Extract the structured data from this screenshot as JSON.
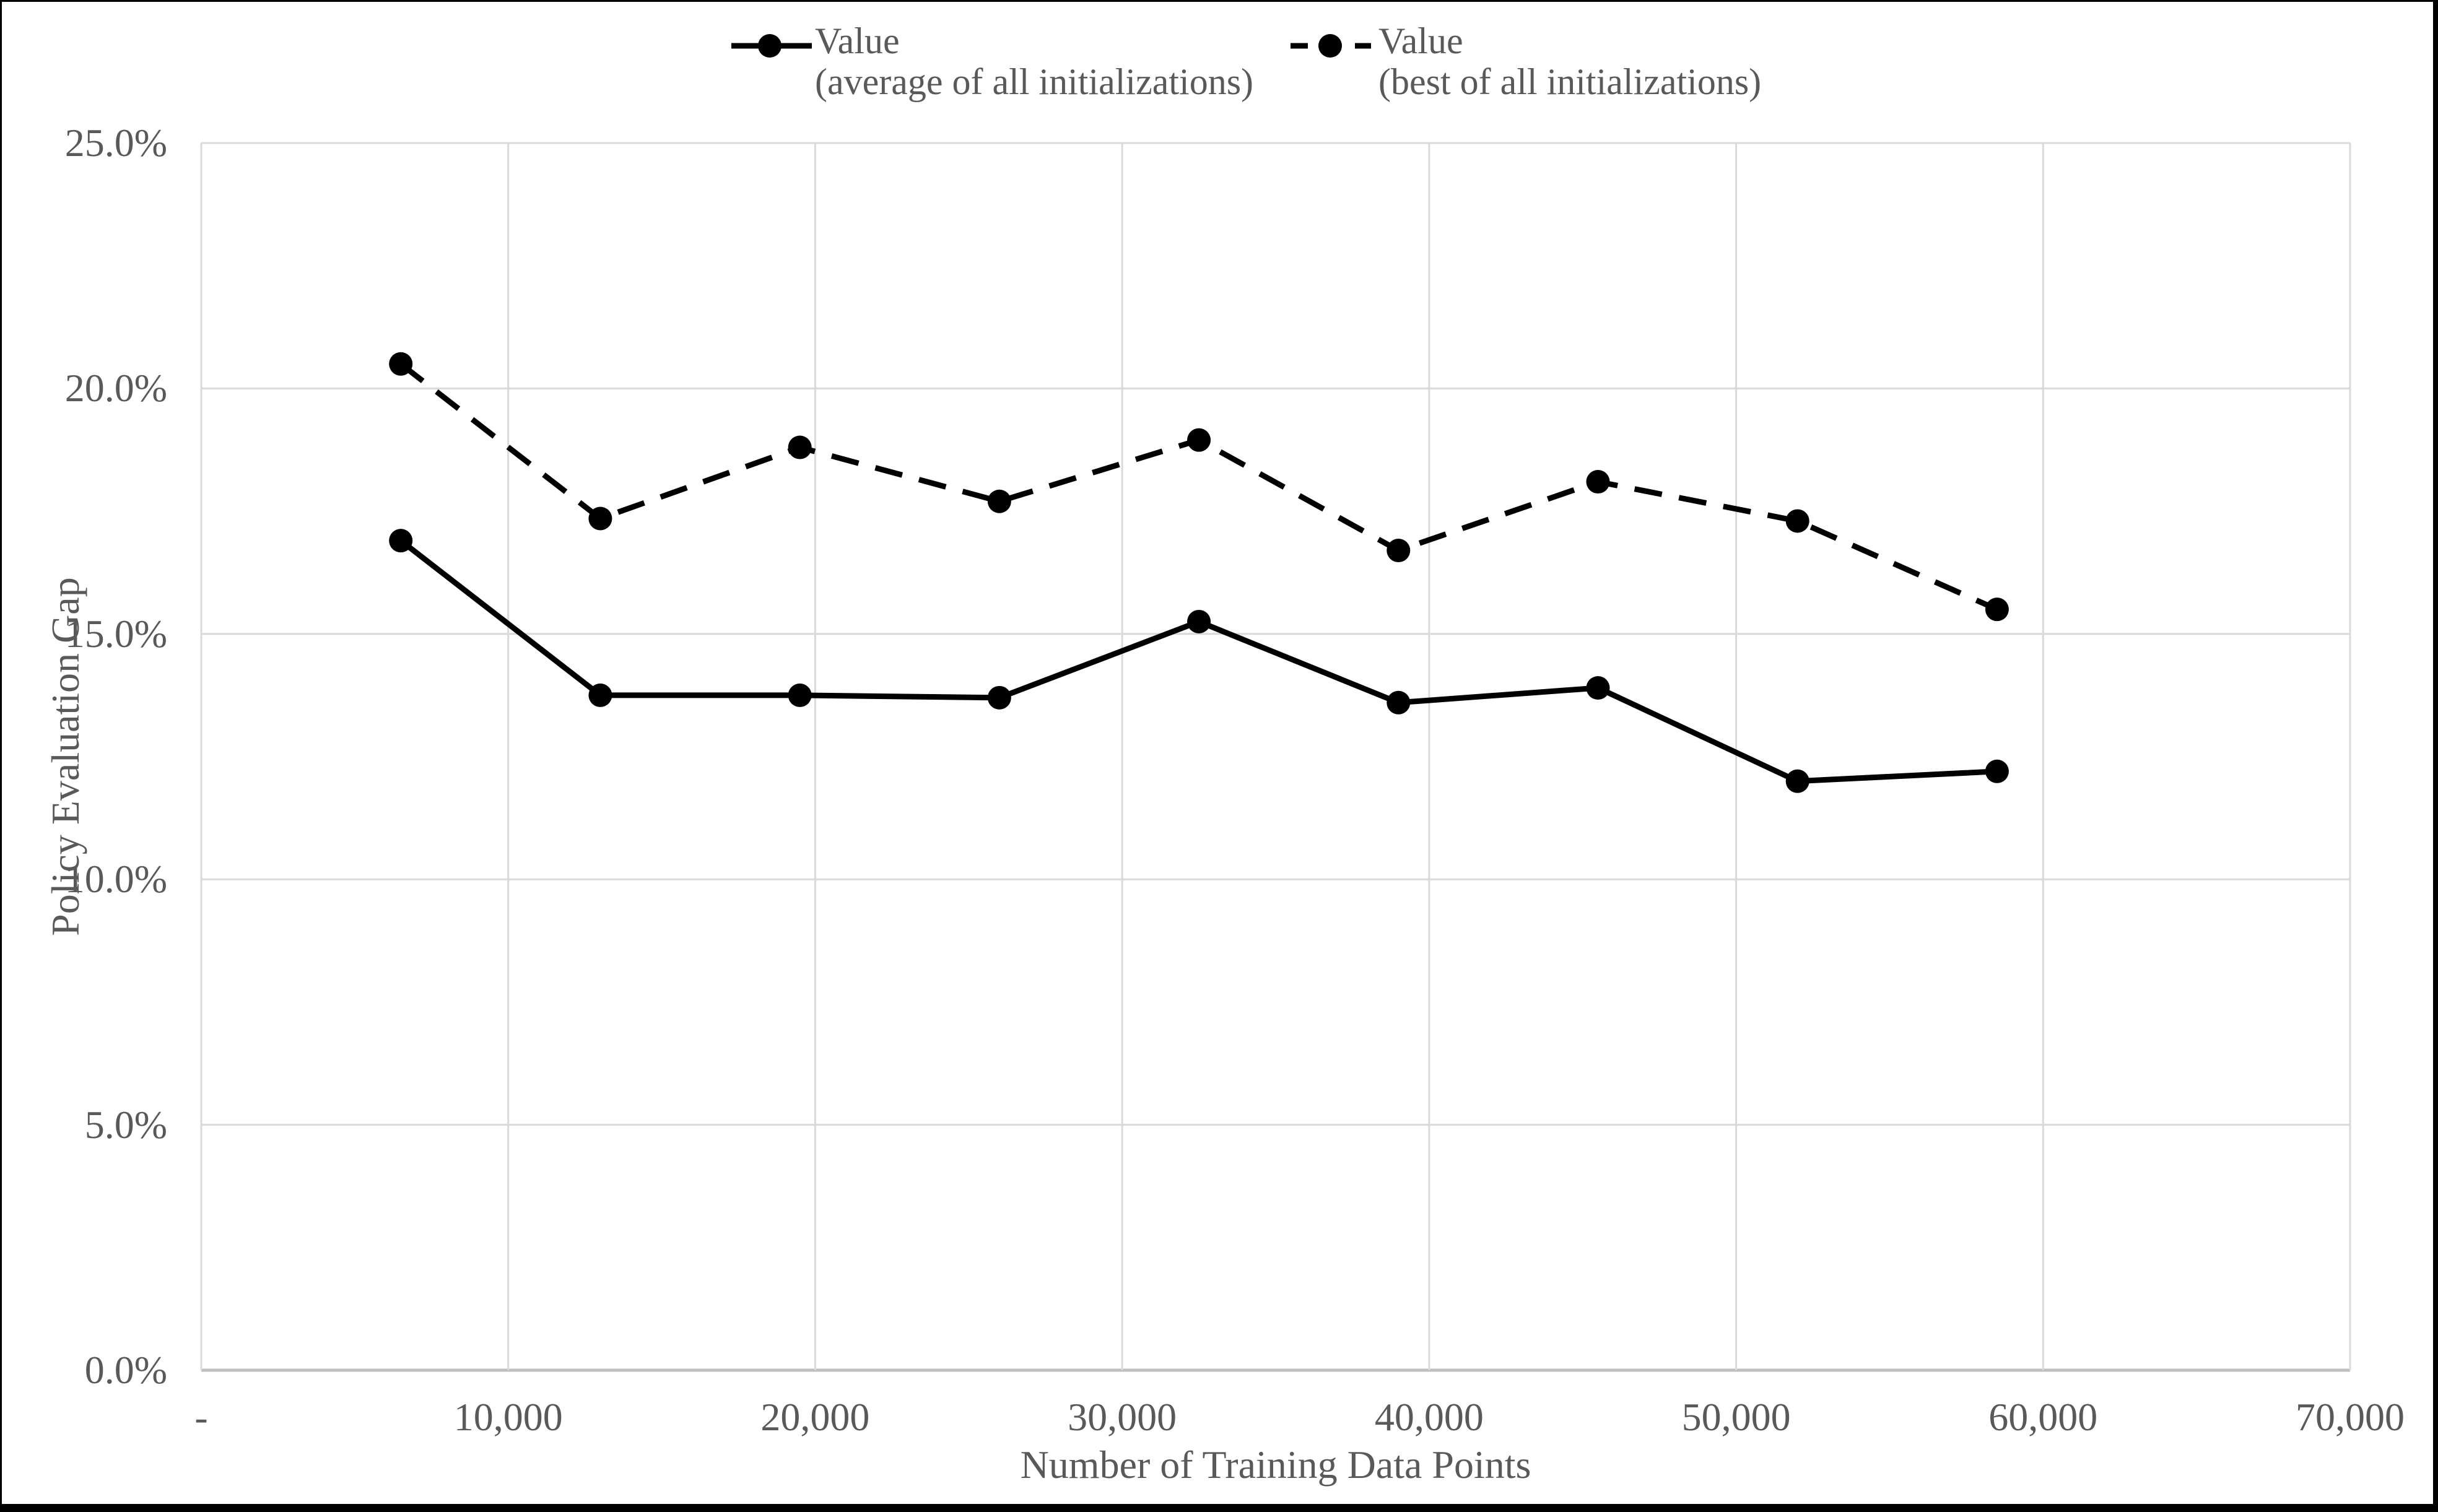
{
  "colors": {
    "series": "#000000",
    "gridline": "#d9d9d9",
    "plot_border": "#d9d9d9",
    "axis_line": "#bfbfbf",
    "text": "#595959",
    "background": "#ffffff",
    "figure_border": "#000000"
  },
  "legend": {
    "items": [
      {
        "label_line1": "Value",
        "label_line2": "(average of all initializations)",
        "style": "solid",
        "marker": "filled-circle"
      },
      {
        "label_line1": "Value",
        "label_line2": "(best of all initializations)",
        "style": "dashed",
        "marker": "filled-circle"
      }
    ]
  },
  "axes": {
    "x_title": "Number of Training Data Points",
    "y_title": "Policy Evaluation Gap",
    "y_tick_labels": [
      "25.0%",
      "20.0%",
      "15.0%",
      "10.0%",
      "5.0%",
      "0.0%"
    ],
    "x_tick_labels": [
      "-",
      "10,000",
      "20,000",
      "30,000",
      "40,000",
      "50,000",
      "60,000",
      "70,000"
    ]
  },
  "chart_data": {
    "type": "line",
    "title": "",
    "xlabel": "Number of Training Data Points",
    "ylabel": "Policy Evaluation Gap",
    "xlim": [
      0,
      70000
    ],
    "ylim": [
      0,
      25
    ],
    "y_unit": "percent",
    "grid": true,
    "legend_position": "top",
    "x": [
      6500,
      13000,
      19500,
      26000,
      32500,
      39000,
      45500,
      52000,
      58500
    ],
    "series": [
      {
        "name": "Value (average of all initializations)",
        "line_style": "solid",
        "marker": "filled-circle",
        "values": [
          16.9,
          13.75,
          13.75,
          13.7,
          15.25,
          13.6,
          13.9,
          12.0,
          12.2
        ]
      },
      {
        "name": "Value (best of all initializations)",
        "line_style": "dashed",
        "marker": "filled-circle",
        "values": [
          20.5,
          17.35,
          18.8,
          17.7,
          18.95,
          16.7,
          18.1,
          17.3,
          15.5
        ]
      }
    ]
  }
}
